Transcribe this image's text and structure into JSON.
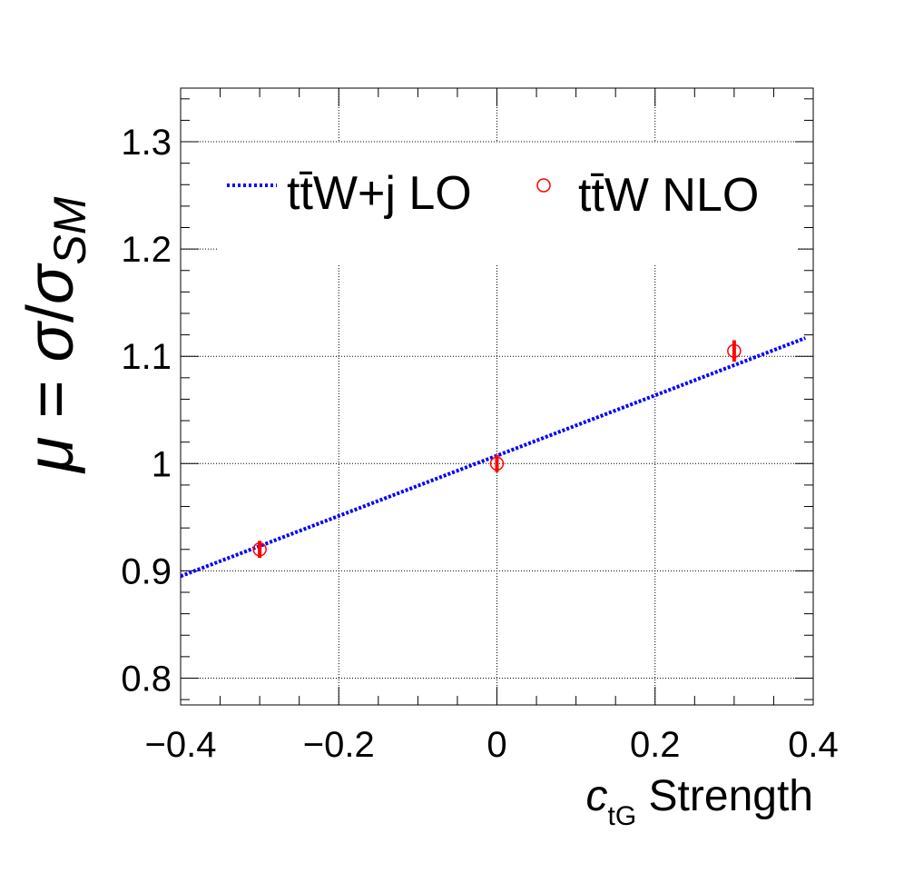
{
  "chart_data": {
    "type": "line",
    "xlabel_var": "c",
    "xlabel_sub": "tG",
    "xlabel_rest": " Strength",
    "ylabel_mu": "μ",
    "ylabel_eq": " = ",
    "ylabel_sigma": "σ",
    "ylabel_slash": "/",
    "ylabel_sigma2": "σ",
    "ylabel_sub": "SM",
    "xlim": [
      -0.4,
      0.4
    ],
    "ylim": [
      0.775,
      1.35
    ],
    "x_ticks": [
      -0.4,
      -0.2,
      0,
      0.2,
      0.4
    ],
    "x_tick_labels": [
      "−0.4",
      "−0.2",
      "0",
      "0.2",
      "0.4"
    ],
    "y_ticks": [
      0.8,
      0.9,
      1.0,
      1.1,
      1.2,
      1.3
    ],
    "y_tick_labels": [
      "0.8",
      "0.9",
      "1",
      "1.1",
      "1.2",
      "1.3"
    ],
    "grid": true,
    "legend_position": "top",
    "series": [
      {
        "name": "tt̄W+j LO",
        "style": "dotted-line",
        "color": "#0000ff",
        "x": [
          -0.4,
          0.39
        ],
        "y": [
          0.895,
          1.117
        ]
      },
      {
        "name": "tt̄W NLO",
        "style": "open-circle-with-errorbar",
        "color": "#ff0000",
        "x": [
          -0.3,
          0.0,
          0.3
        ],
        "y": [
          0.92,
          1.0,
          1.105
        ],
        "yerr": [
          0.008,
          0.008,
          0.01
        ]
      }
    ]
  }
}
